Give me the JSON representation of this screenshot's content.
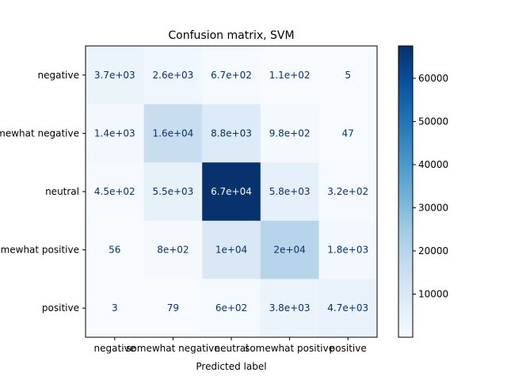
{
  "chart_data": {
    "type": "heatmap",
    "title": "Confusion matrix, SVM",
    "xlabel": "Predicted label",
    "ylabel": "",
    "row_labels": [
      "negative",
      "somewhat negative",
      "neutral",
      "somewhat positive",
      "positive"
    ],
    "col_labels": [
      "negative",
      "somewhat negative",
      "neutral",
      "somewhat positive",
      "positive"
    ],
    "values": [
      [
        3700,
        2600,
        670,
        110,
        5
      ],
      [
        1400,
        16000,
        8800,
        980,
        47
      ],
      [
        450,
        5500,
        67000,
        5800,
        320
      ],
      [
        56,
        800,
        10000,
        20000,
        1800
      ],
      [
        3,
        79,
        600,
        3800,
        4700
      ]
    ],
    "cell_text": [
      [
        "3.7e+03",
        "2.6e+03",
        "6.7e+02",
        "1.1e+02",
        "5"
      ],
      [
        "1.4e+03",
        "1.6e+04",
        "8.8e+03",
        "9.8e+02",
        "47"
      ],
      [
        "4.5e+02",
        "5.5e+03",
        "6.7e+04",
        "5.8e+03",
        "3.2e+02"
      ],
      [
        "56",
        "8e+02",
        "1e+04",
        "2e+04",
        "1.8e+03"
      ],
      [
        "3",
        "79",
        "6e+02",
        "3.8e+03",
        "4.7e+03"
      ]
    ],
    "colormap": "Blues",
    "color_range": [
      3,
      67500
    ],
    "colorbar_ticks": [
      {
        "value": 10000,
        "label": "10000"
      },
      {
        "value": 20000,
        "label": "20000"
      },
      {
        "value": 30000,
        "label": "30000"
      },
      {
        "value": 40000,
        "label": "40000"
      },
      {
        "value": 50000,
        "label": "50000"
      },
      {
        "value": 60000,
        "label": "60000"
      }
    ],
    "colors": {
      "low": "#f7fbff",
      "high": "#08306b",
      "text_dark": "#08306b",
      "text_light": "#f7fbff"
    }
  }
}
